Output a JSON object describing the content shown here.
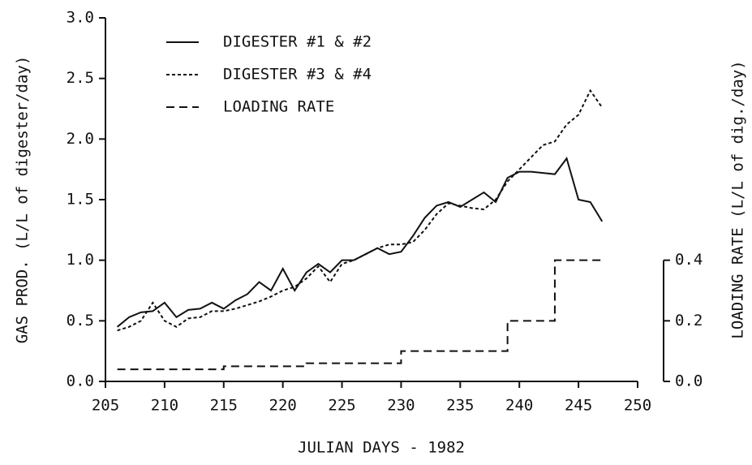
{
  "chart_data": {
    "type": "line",
    "xlabel": "JULIAN DAYS - 1982",
    "ylabel": "GAS PROD. (L/L of digester/day)",
    "y2label": "LOADING RATE (L/L of dig./day)",
    "xlim": [
      205,
      250
    ],
    "xticks": [
      205,
      210,
      215,
      220,
      225,
      230,
      235,
      240,
      245,
      250
    ],
    "ylim": [
      0,
      3
    ],
    "yticks": [
      {
        "value": 0,
        "label": "0.0"
      },
      {
        "value": 0.5,
        "label": "0.5"
      },
      {
        "value": 1,
        "label": "1.0"
      },
      {
        "value": 1.5,
        "label": "1.5"
      },
      {
        "value": 2,
        "label": "2.0"
      },
      {
        "value": 2.5,
        "label": "2.5"
      },
      {
        "value": 3,
        "label": "3.0"
      }
    ],
    "y2lim": [
      0,
      1.2
    ],
    "y2ticks": [
      {
        "value": 0,
        "label": "0.0"
      },
      {
        "value": 0.2,
        "label": "0.2"
      },
      {
        "value": 0.4,
        "label": "0.4"
      }
    ],
    "x": [
      206,
      207,
      208,
      209,
      210,
      211,
      212,
      213,
      214,
      215,
      216,
      217,
      218,
      219,
      220,
      221,
      222,
      223,
      224,
      225,
      226,
      227,
      228,
      229,
      230,
      231,
      232,
      233,
      234,
      235,
      236,
      237,
      238,
      239,
      240,
      241,
      242,
      243,
      244,
      245,
      246,
      247
    ],
    "series": [
      {
        "name": "DIGESTER #1 & #2",
        "color": "#111",
        "dash": "none",
        "values": [
          0.45,
          0.53,
          0.57,
          0.58,
          0.65,
          0.53,
          0.59,
          0.6,
          0.65,
          0.6,
          0.67,
          0.72,
          0.82,
          0.75,
          0.93,
          0.75,
          0.9,
          0.97,
          0.9,
          1.0,
          1.0,
          1.05,
          1.1,
          1.05,
          1.07,
          1.2,
          1.35,
          1.45,
          1.48,
          1.44,
          1.5,
          1.56,
          1.48,
          1.68,
          1.73,
          1.73,
          1.72,
          1.71,
          1.84,
          1.5,
          1.48,
          1.32
        ]
      },
      {
        "name": "DIGESTER #3 & #4",
        "color": "#111",
        "dash": "4 3",
        "values": [
          0.42,
          0.45,
          0.5,
          0.65,
          0.5,
          0.45,
          0.52,
          0.53,
          0.58,
          0.58,
          0.6,
          0.63,
          0.66,
          0.7,
          0.75,
          0.78,
          0.85,
          0.95,
          0.82,
          0.97,
          1.0,
          1.05,
          1.1,
          1.13,
          1.13,
          1.15,
          1.25,
          1.38,
          1.47,
          1.45,
          1.43,
          1.42,
          1.5,
          1.65,
          1.75,
          1.85,
          1.95,
          1.98,
          2.12,
          2.2,
          2.4,
          2.26
        ]
      },
      {
        "name": "LOADING RATE",
        "color": "#111",
        "dash": "10 6",
        "axis": "y2",
        "x": [
          206,
          215,
          215,
          222,
          222,
          230,
          230,
          239,
          239,
          243,
          243,
          247
        ],
        "values": [
          0.04,
          0.04,
          0.05,
          0.05,
          0.06,
          0.06,
          0.1,
          0.1,
          0.2,
          0.2,
          0.4,
          0.4
        ]
      }
    ]
  }
}
